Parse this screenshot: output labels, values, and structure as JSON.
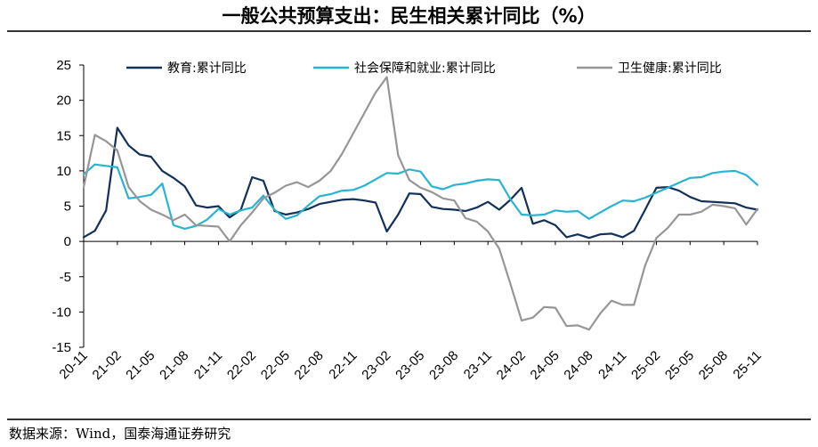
{
  "title": "一般公共预算支出：民生相关累计同比（%）",
  "source": "数据来源：Wind，国泰海通证券研究",
  "chart_data": {
    "type": "line",
    "title": "一般公共预算支出：民生相关累计同比（%）",
    "xlabel": "",
    "ylabel": "",
    "ylim": [
      -15,
      25
    ],
    "yticks": [
      25,
      20,
      15,
      10,
      5,
      0,
      -5,
      -10,
      -15
    ],
    "tick_labels": [
      "20-11",
      "21-02",
      "21-05",
      "21-08",
      "21-11",
      "22-02",
      "22-05",
      "22-08",
      "22-11",
      "23-02",
      "23-05",
      "23-08",
      "23-11",
      "24-02",
      "24-05",
      "24-08",
      "24-11",
      "25-02",
      "25-05",
      "25-08",
      "25-11"
    ],
    "legend_position": "top",
    "x": [
      "20-11",
      "20-12",
      "21-01",
      "21-02",
      "21-03",
      "21-04",
      "21-05",
      "21-06",
      "21-07",
      "21-08",
      "21-09",
      "21-10",
      "21-11",
      "21-12",
      "22-01",
      "22-02",
      "22-03",
      "22-04",
      "22-05",
      "22-06",
      "22-07",
      "22-08",
      "22-09",
      "22-10",
      "22-11",
      "22-12",
      "23-01",
      "23-02",
      "23-03",
      "23-04",
      "23-05",
      "23-06",
      "23-07",
      "23-08",
      "23-09",
      "23-10",
      "23-11",
      "23-12",
      "24-01",
      "24-02",
      "24-03",
      "24-04",
      "24-05",
      "24-06",
      "24-07",
      "24-08",
      "24-09",
      "24-10",
      "24-11",
      "24-12",
      "25-01",
      "25-02",
      "25-03",
      "25-04",
      "25-05",
      "25-06",
      "25-07",
      "25-08",
      "25-09",
      "25-10",
      "25-11"
    ],
    "series": [
      {
        "name": "教育:累计同比",
        "color": "#12305a",
        "values": [
          0.6,
          1.5,
          4.4,
          16.1,
          13.6,
          12.3,
          12.0,
          10.0,
          9.0,
          7.8,
          5.1,
          4.8,
          5.0,
          3.4,
          4.5,
          9.1,
          8.6,
          4.3,
          3.8,
          4.1,
          4.6,
          5.3,
          5.6,
          5.9,
          6.0,
          5.8,
          5.5,
          1.4,
          3.8,
          6.8,
          6.7,
          4.9,
          4.6,
          4.5,
          4.3,
          4.8,
          5.6,
          4.5,
          5.9,
          7.6,
          2.5,
          3.0,
          2.3,
          0.6,
          1.0,
          0.5,
          1.0,
          1.1,
          0.6,
          1.5,
          4.5,
          7.6,
          7.7,
          7.2,
          6.3,
          5.7,
          5.6,
          5.5,
          5.4,
          4.8,
          4.5
        ]
      },
      {
        "name": "社会保障和就业:累计同比",
        "color": "#27b4d2",
        "values": [
          9.5,
          10.9,
          10.7,
          10.5,
          6.1,
          6.3,
          6.6,
          8.2,
          2.3,
          1.8,
          2.2,
          3.1,
          4.6,
          3.8,
          4.4,
          4.8,
          6.5,
          4.5,
          3.2,
          3.7,
          5.1,
          6.4,
          6.7,
          7.2,
          7.3,
          7.9,
          8.8,
          9.7,
          9.6,
          10.2,
          9.9,
          7.8,
          7.4,
          8.0,
          8.2,
          8.6,
          8.8,
          8.7,
          6.0,
          3.8,
          3.7,
          3.8,
          4.4,
          4.2,
          4.3,
          3.2,
          4.1,
          5.0,
          5.8,
          5.7,
          6.2,
          6.9,
          7.6,
          8.3,
          9.0,
          9.1,
          9.7,
          9.9,
          10.0,
          9.4,
          8.0
        ]
      },
      {
        "name": "卫生健康:累计同比",
        "color": "#969696",
        "values": [
          7.7,
          15.1,
          14.2,
          12.9,
          7.7,
          5.7,
          4.5,
          3.8,
          3.0,
          3.8,
          2.3,
          2.2,
          2.1,
          0.0,
          2.3,
          4.1,
          6.1,
          6.9,
          7.9,
          8.4,
          7.7,
          8.6,
          10.0,
          12.4,
          15.3,
          18.2,
          21.1,
          23.3,
          12.2,
          8.7,
          7.6,
          7.0,
          6.1,
          5.8,
          3.3,
          2.8,
          1.4,
          -1.0,
          -6.0,
          -11.2,
          -10.8,
          -9.3,
          -9.4,
          -12.0,
          -11.9,
          -12.5,
          -10.2,
          -8.4,
          -9.0,
          -9.0,
          -3.4,
          0.5,
          1.9,
          3.8,
          3.8,
          4.2,
          5.2,
          5.0,
          4.7,
          2.4,
          4.6
        ]
      }
    ]
  }
}
